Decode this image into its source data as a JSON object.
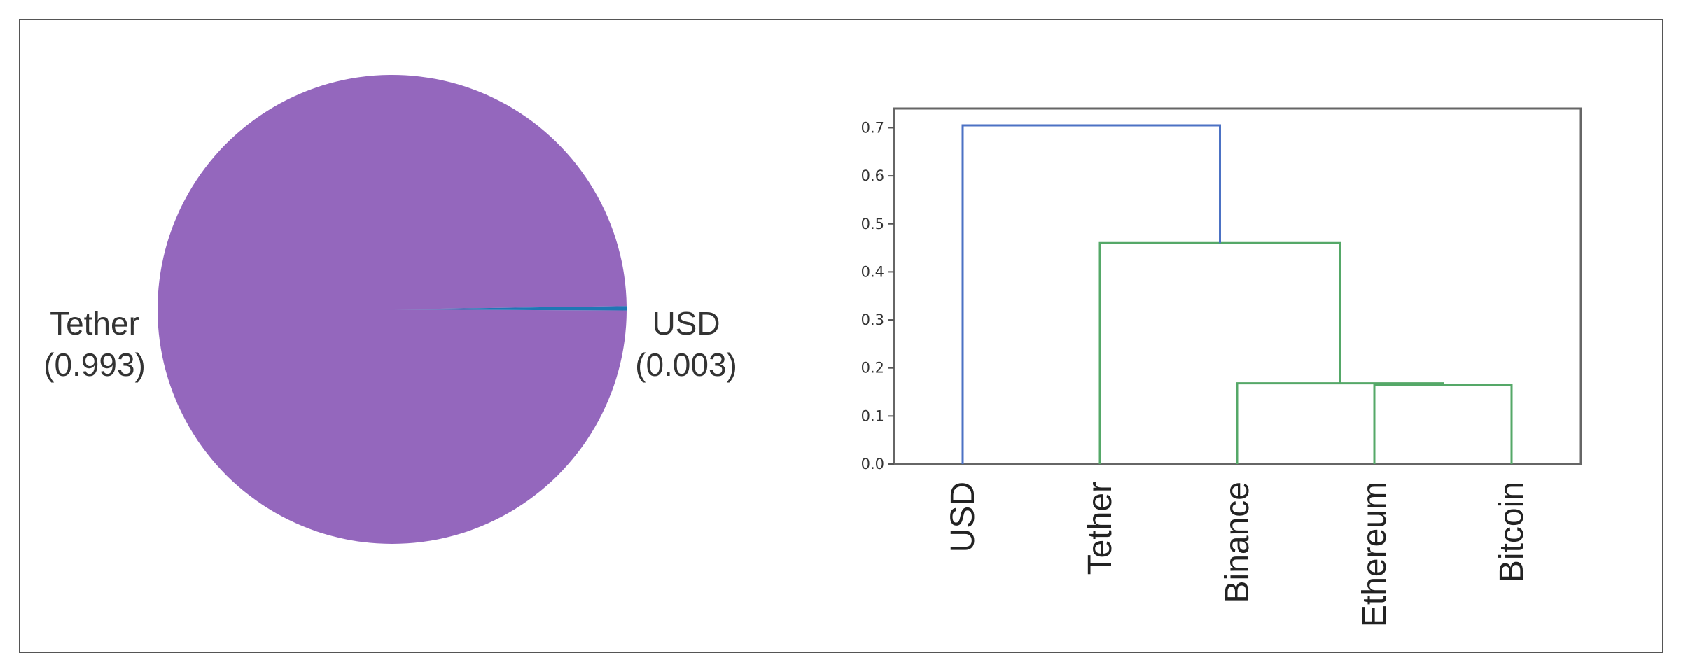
{
  "chart_data": [
    {
      "type": "pie",
      "slices": [
        {
          "label": "Tether",
          "value_label": "(0.993)",
          "value": 0.993,
          "color": "#9467bd"
        },
        {
          "label": "USD",
          "value_label": "(0.003)",
          "value": 0.003,
          "color": "#1f77b4"
        }
      ],
      "start_angle_deg": 0,
      "direction": "counterclockwise"
    },
    {
      "type": "dendrogram",
      "leaves": [
        "USD",
        "Tether",
        "Binance",
        "Ethereum",
        "Bitcoin"
      ],
      "ylim": [
        0,
        0.74
      ],
      "yticks": [
        "0.0",
        "0.1",
        "0.2",
        "0.3",
        "0.4",
        "0.5",
        "0.6",
        "0.7"
      ],
      "ytick_values": [
        0.0,
        0.1,
        0.2,
        0.3,
        0.4,
        0.5,
        0.6,
        0.7
      ],
      "colors": {
        "above_threshold": "#4c72c4",
        "cluster": "#55a868"
      },
      "links": [
        {
          "left": "Ethereum",
          "right": "Bitcoin",
          "height": 0.165,
          "color": "cluster"
        },
        {
          "left": "Binance",
          "right": "Ethereum+Bitcoin",
          "height": 0.168,
          "color": "cluster"
        },
        {
          "left": "Tether",
          "right": "Binance+Ethereum+Bitcoin",
          "height": 0.46,
          "color": "cluster"
        },
        {
          "left": "USD",
          "right": "Tether+Binance+Ethereum+Bitcoin",
          "height": 0.705,
          "color": "above_threshold"
        }
      ]
    }
  ]
}
